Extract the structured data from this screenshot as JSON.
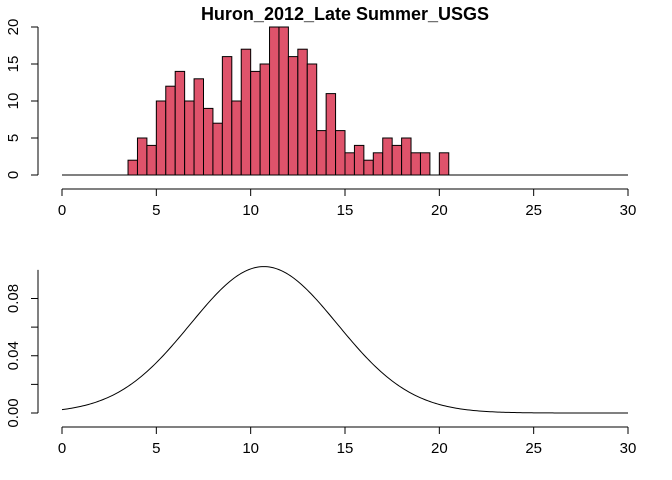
{
  "chart_data": [
    {
      "type": "bar",
      "title": "Huron_2012_Late Summer_USGS",
      "bar_color": "#DF536B",
      "bin_width": 0.5,
      "xlim": [
        0,
        30
      ],
      "ylim": [
        0,
        20
      ],
      "x_ticks": [
        "0",
        "5",
        "10",
        "15",
        "20",
        "25",
        "30"
      ],
      "y_ticks": [
        "0",
        "5",
        "10",
        "15",
        "20"
      ],
      "bins": [
        {
          "x0": 3.5,
          "value": 2
        },
        {
          "x0": 4.0,
          "value": 5
        },
        {
          "x0": 4.5,
          "value": 4
        },
        {
          "x0": 5.0,
          "value": 10
        },
        {
          "x0": 5.5,
          "value": 12
        },
        {
          "x0": 6.0,
          "value": 14
        },
        {
          "x0": 6.5,
          "value": 10
        },
        {
          "x0": 7.0,
          "value": 13
        },
        {
          "x0": 7.5,
          "value": 9
        },
        {
          "x0": 8.0,
          "value": 7
        },
        {
          "x0": 8.5,
          "value": 16
        },
        {
          "x0": 9.0,
          "value": 10
        },
        {
          "x0": 9.5,
          "value": 17
        },
        {
          "x0": 10.0,
          "value": 14
        },
        {
          "x0": 10.5,
          "value": 15
        },
        {
          "x0": 11.0,
          "value": 20
        },
        {
          "x0": 11.5,
          "value": 20
        },
        {
          "x0": 12.0,
          "value": 16
        },
        {
          "x0": 12.5,
          "value": 17
        },
        {
          "x0": 13.0,
          "value": 15
        },
        {
          "x0": 13.5,
          "value": 6
        },
        {
          "x0": 14.0,
          "value": 11
        },
        {
          "x0": 14.5,
          "value": 6
        },
        {
          "x0": 15.0,
          "value": 3
        },
        {
          "x0": 15.5,
          "value": 4
        },
        {
          "x0": 16.0,
          "value": 2
        },
        {
          "x0": 16.5,
          "value": 3
        },
        {
          "x0": 17.0,
          "value": 5
        },
        {
          "x0": 17.5,
          "value": 4
        },
        {
          "x0": 18.0,
          "value": 5
        },
        {
          "x0": 18.5,
          "value": 3
        },
        {
          "x0": 19.0,
          "value": 3
        },
        {
          "x0": 20.0,
          "value": 3
        }
      ],
      "baseline": [
        0,
        30
      ]
    },
    {
      "type": "line",
      "title": "",
      "xlim": [
        0,
        30
      ],
      "ylim": [
        0,
        0.1
      ],
      "x_ticks": [
        "0",
        "5",
        "10",
        "15",
        "20",
        "25",
        "30"
      ],
      "y_ticks": [
        "0.00",
        "0.04",
        "0.08"
      ],
      "y_tick_values": [
        0.0,
        0.02,
        0.04,
        0.06,
        0.08
      ],
      "series": [
        {
          "mean": 10.7,
          "sd": 3.9,
          "x_range": [
            0,
            30
          ],
          "note_values": "normal density curve drawn from mean and sd"
        }
      ]
    }
  ]
}
